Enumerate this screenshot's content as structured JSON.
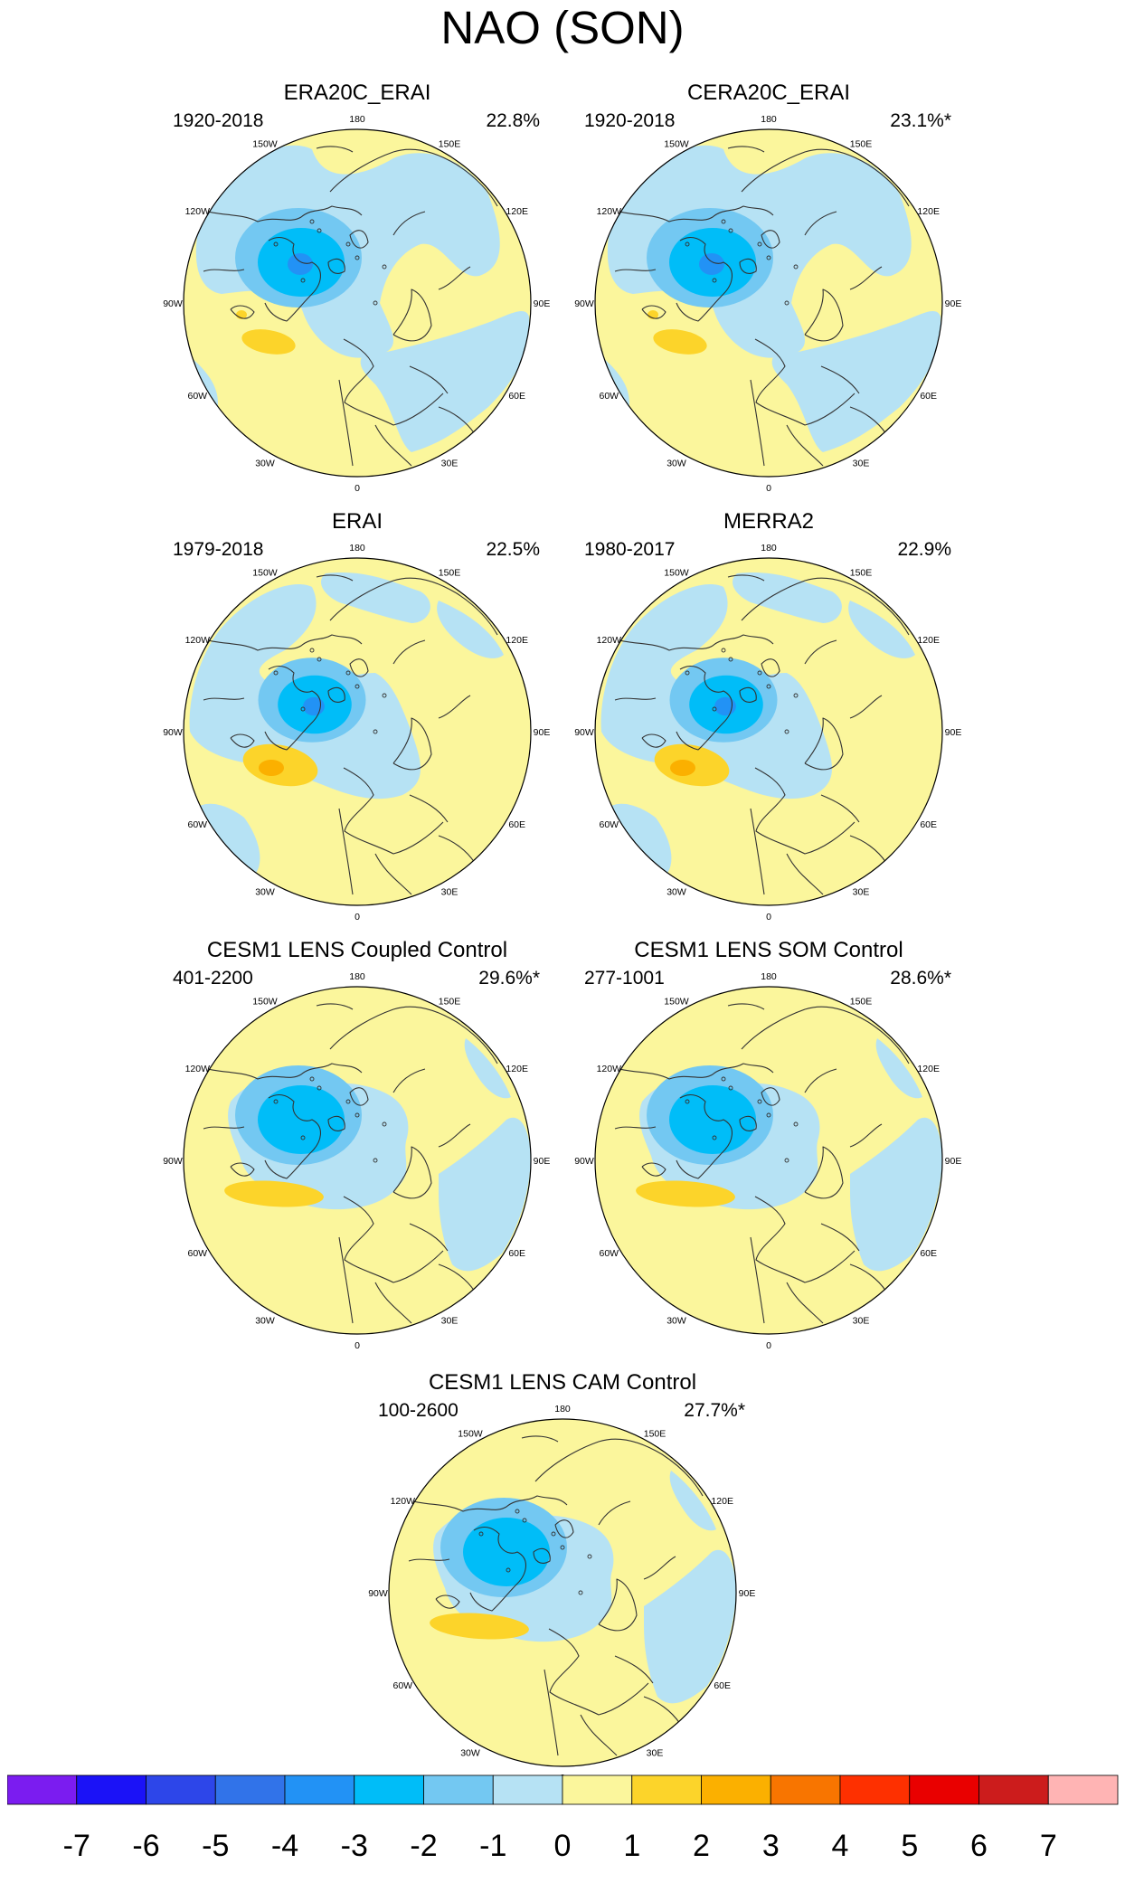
{
  "title": "NAO (SON)",
  "colors": {
    "land_outline": "#333333",
    "ocean_bg": "#fbf69c",
    "levels": [
      "#7b1cf0",
      "#1b12f7",
      "#2d46e9",
      "#3173e9",
      "#2292f5",
      "#00bdf8",
      "#73c8f2",
      "#b6e2f4",
      "#fbf69c",
      "#fcd42a",
      "#fbb000",
      "#f87500",
      "#fe3000",
      "#e90000",
      "#cc1c1c",
      "#ffb4b4"
    ]
  },
  "longitude_labels": {
    "top": "180",
    "top_left": "150W",
    "top_right": "150E",
    "upper_left": "120W",
    "upper_right": "120E",
    "left": "90W",
    "right": "90E",
    "lower_left": "60W",
    "lower_right": "60E",
    "bottom_left": "30W",
    "bottom_right": "30E",
    "bottom": "0"
  },
  "panels": [
    {
      "title": "ERA20C_ERAI",
      "years": "1920-2018",
      "percent": "22.8%",
      "pattern": "reanalysis_long"
    },
    {
      "title": "CERA20C_ERAI",
      "years": "1920-2018",
      "percent": "23.1%*",
      "pattern": "reanalysis_long"
    },
    {
      "title": "ERAI",
      "years": "1979-2018",
      "percent": "22.5%",
      "pattern": "reanalysis_short"
    },
    {
      "title": "MERRA2",
      "years": "1980-2017",
      "percent": "22.9%",
      "pattern": "reanalysis_short"
    },
    {
      "title": "CESM1 LENS Coupled Control",
      "years": "401-2200",
      "percent": "29.6%*",
      "pattern": "model"
    },
    {
      "title": "CESM1 LENS SOM Control",
      "years": "277-1001",
      "percent": "28.6%*",
      "pattern": "model"
    },
    {
      "title": "CESM1 LENS CAM Control",
      "years": "100-2600",
      "percent": "27.7%*",
      "pattern": "model"
    }
  ],
  "colorbar": {
    "labels": [
      "-7",
      "-6",
      "-5",
      "-4",
      "-3",
      "-2",
      "-1",
      "0",
      "1",
      "2",
      "3",
      "4",
      "5",
      "6",
      "7"
    ]
  }
}
